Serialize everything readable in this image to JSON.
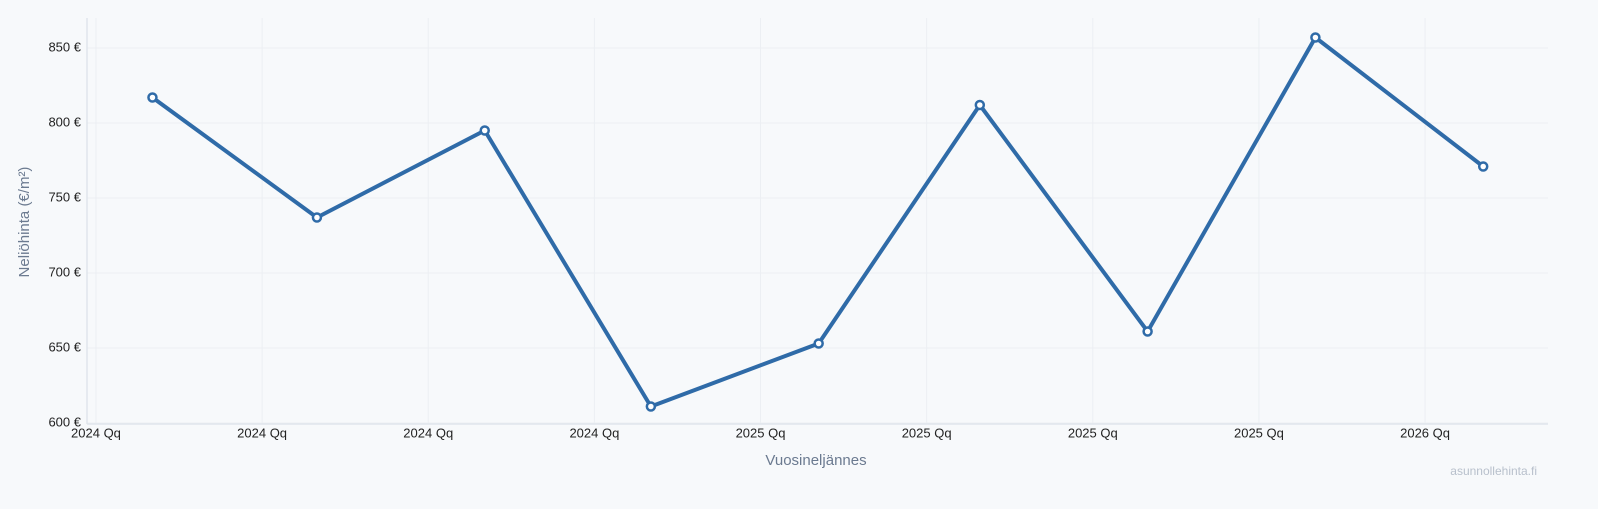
{
  "chart_data": {
    "type": "line",
    "x_label": "Vuosineljännes",
    "y_label": "Neliöhinta (€/m²)",
    "watermark": "asunnollehinta.fi",
    "x": [
      0.34,
      1.33,
      2.34,
      3.34,
      4.35,
      5.32,
      6.33,
      7.34,
      8.35
    ],
    "series": [
      {
        "color": "#2f6ba8",
        "values": [
          817,
          737,
          795,
          611,
          653,
          812,
          661,
          857,
          771
        ]
      }
    ],
    "xlim": [
      -0.054,
      8.74
    ],
    "xticks": [
      {
        "value": 0,
        "label": "2024 Qq"
      },
      {
        "value": 1,
        "label": "2024 Qq"
      },
      {
        "value": 2,
        "label": "2024 Qq"
      },
      {
        "value": 3,
        "label": "2024 Qq"
      },
      {
        "value": 4,
        "label": "2025 Qq"
      },
      {
        "value": 5,
        "label": "2025 Qq"
      },
      {
        "value": 6,
        "label": "2025 Qq"
      },
      {
        "value": 7,
        "label": "2025 Qq"
      },
      {
        "value": 8,
        "label": "2026 Qq"
      }
    ],
    "ylim": [
      600,
      870
    ],
    "yticks": [
      {
        "value": 600,
        "label": "600 €"
      },
      {
        "value": 650,
        "label": "650 €"
      },
      {
        "value": 700,
        "label": "700 €"
      },
      {
        "value": 750,
        "label": "750 €"
      },
      {
        "value": 800,
        "label": "800 €"
      },
      {
        "value": 850,
        "label": "850 €"
      }
    ],
    "grid": true
  }
}
